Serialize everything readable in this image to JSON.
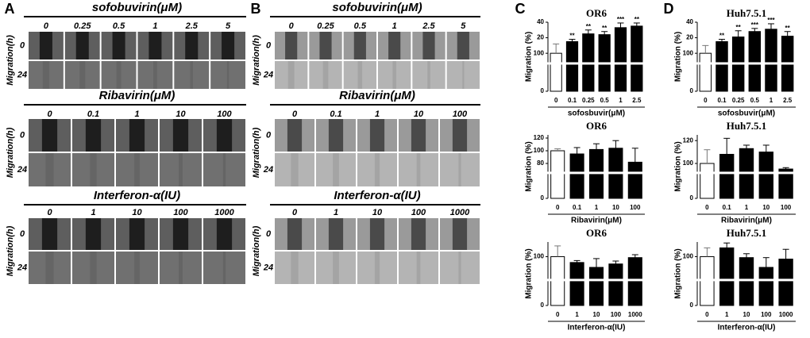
{
  "panels": [
    {
      "label": "A",
      "y_label": "Migration(h)",
      "times": [
        "0",
        "24"
      ],
      "groups": [
        {
          "title": "sofobuvirin(μM)",
          "concentrations": [
            "0",
            "0.25",
            "0.5",
            "1",
            "2.5",
            "5"
          ]
        },
        {
          "title": "Ribavirin(μM)",
          "concentrations": [
            "0",
            "0.1",
            "1",
            "10",
            "100"
          ]
        },
        {
          "title": "Interferon-α(IU)",
          "concentrations": [
            "0",
            "1",
            "10",
            "100",
            "1000"
          ]
        }
      ]
    },
    {
      "label": "B",
      "y_label": "Migration(h)",
      "times": [
        "0",
        "24"
      ],
      "groups": [
        {
          "title": "sofobuvirin(μM)",
          "concentrations": [
            "0",
            "0.25",
            "0.5",
            "1",
            "2.5",
            "5"
          ]
        },
        {
          "title": "Ribavirin(μM)",
          "concentrations": [
            "0",
            "0.1",
            "1",
            "10",
            "100"
          ]
        },
        {
          "title": "Interferon-α(IU)",
          "concentrations": [
            "0",
            "1",
            "10",
            "100",
            "1000"
          ]
        }
      ]
    }
  ],
  "charts": [
    {
      "label": "C",
      "plots": [
        {
          "type": "bar",
          "title": "OR6",
          "y_label": "Migration (%)",
          "x_label": "sofosbuvir(μM)",
          "categories": [
            "0",
            "0.1",
            "0.25",
            "0.5",
            "1",
            "2.5"
          ],
          "values": [
            100,
            115,
            125,
            124,
            133,
            135
          ],
          "errors": [
            12,
            3,
            5,
            4,
            6,
            4
          ],
          "annotations": [
            null,
            "**",
            "**",
            "**",
            "***",
            "**"
          ],
          "ylim": [
            0,
            140
          ],
          "yticks": [
            0,
            100,
            {
              "value": 120,
              "label": "20"
            },
            {
              "value": 140,
              "label": "40"
            }
          ]
        },
        {
          "type": "bar",
          "title": "OR6",
          "y_label": "Migration (%)",
          "x_label": "Ribavirin(μM)",
          "categories": [
            "0",
            "0.1",
            "1",
            "10",
            "100"
          ],
          "values": [
            100,
            95,
            102,
            104,
            82
          ],
          "errors": [
            3,
            10,
            9,
            12,
            22
          ],
          "annotations": [
            null,
            null,
            null,
            null,
            null
          ],
          "ylim": [
            0,
            125
          ],
          "yticks": [
            0,
            80,
            100,
            120
          ]
        },
        {
          "type": "bar",
          "title": "OR6",
          "y_label": "Migration (%)",
          "x_label": "Interferon-α(IU)",
          "categories": [
            "0",
            "1",
            "10",
            "100",
            "1000"
          ],
          "values": [
            100,
            88,
            78,
            85,
            98
          ],
          "errors": [
            22,
            4,
            18,
            6,
            6
          ],
          "annotations": [
            null,
            null,
            null,
            null,
            null
          ],
          "ylim": [
            0,
            130
          ],
          "yticks": [
            0,
            100
          ]
        }
      ]
    },
    {
      "label": "D",
      "plots": [
        {
          "type": "bar",
          "title": "Huh7.5.1",
          "y_label": "Migration (%)",
          "x_label": "sofosbuvir(μM)",
          "categories": [
            "0",
            "0.1",
            "0.25",
            "0.5",
            "1",
            "2.5"
          ],
          "values": [
            100,
            115,
            121,
            128,
            131,
            122
          ],
          "errors": [
            10,
            3,
            8,
            4,
            7,
            6
          ],
          "annotations": [
            null,
            "**",
            "**",
            "***",
            "***",
            "**"
          ],
          "ylim": [
            0,
            140
          ],
          "yticks": [
            0,
            100,
            {
              "value": 120,
              "label": "20"
            },
            {
              "value": 140,
              "label": "40"
            }
          ]
        },
        {
          "type": "bar",
          "title": "Huh7.5.1",
          "y_label": "Migration (%)",
          "x_label": "Ribavirin(μM)",
          "categories": [
            "0",
            "0.1",
            "1",
            "10",
            "100"
          ],
          "values": [
            100,
            108,
            113,
            110,
            84
          ],
          "errors": [
            12,
            14,
            3,
            6,
            4
          ],
          "annotations": [
            null,
            null,
            null,
            null,
            null
          ],
          "ylim": [
            0,
            125
          ],
          "yticks": [
            0,
            100,
            120
          ]
        },
        {
          "type": "bar",
          "title": "Huh7.5.1",
          "y_label": "Migration (%)",
          "x_label": "Interferon-α(IU)",
          "categories": [
            "0",
            "1",
            "10",
            "100",
            "1000"
          ],
          "values": [
            100,
            118,
            98,
            78,
            95
          ],
          "errors": [
            18,
            10,
            8,
            20,
            20
          ],
          "annotations": [
            null,
            null,
            null,
            null,
            null
          ],
          "ylim": [
            0,
            130
          ],
          "yticks": [
            0,
            100
          ]
        }
      ]
    }
  ]
}
